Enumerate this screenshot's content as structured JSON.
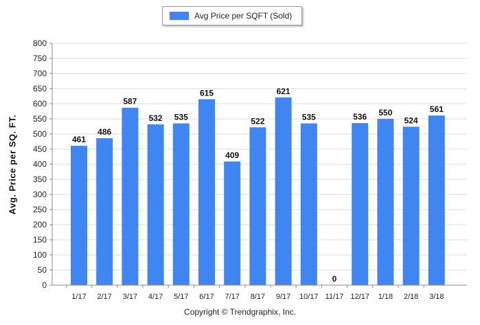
{
  "chart_data": {
    "type": "bar",
    "categories": [
      "1/17",
      "2/17",
      "3/17",
      "4/17",
      "5/17",
      "6/17",
      "7/17",
      "8/17",
      "9/17",
      "10/17",
      "11/17",
      "12/17",
      "1/18",
      "2/18",
      "3/18"
    ],
    "series": [
      {
        "name": "Avg Price per SQFT (Sold)",
        "values": [
          461,
          486,
          587,
          532,
          535,
          615,
          409,
          522,
          621,
          535,
          0,
          536,
          550,
          524,
          561
        ]
      }
    ],
    "ylabel": "Avg. Price per SQ. FT.",
    "ylim": [
      0,
      800
    ],
    "yticks": [
      0,
      50,
      100,
      150,
      200,
      250,
      300,
      350,
      400,
      450,
      500,
      550,
      600,
      650,
      700,
      750,
      800
    ],
    "grid": true,
    "legend": "top",
    "bar_color": "#3f86f3"
  },
  "footer": {
    "copyright": "Copyright © Trendgraphix, Inc."
  }
}
